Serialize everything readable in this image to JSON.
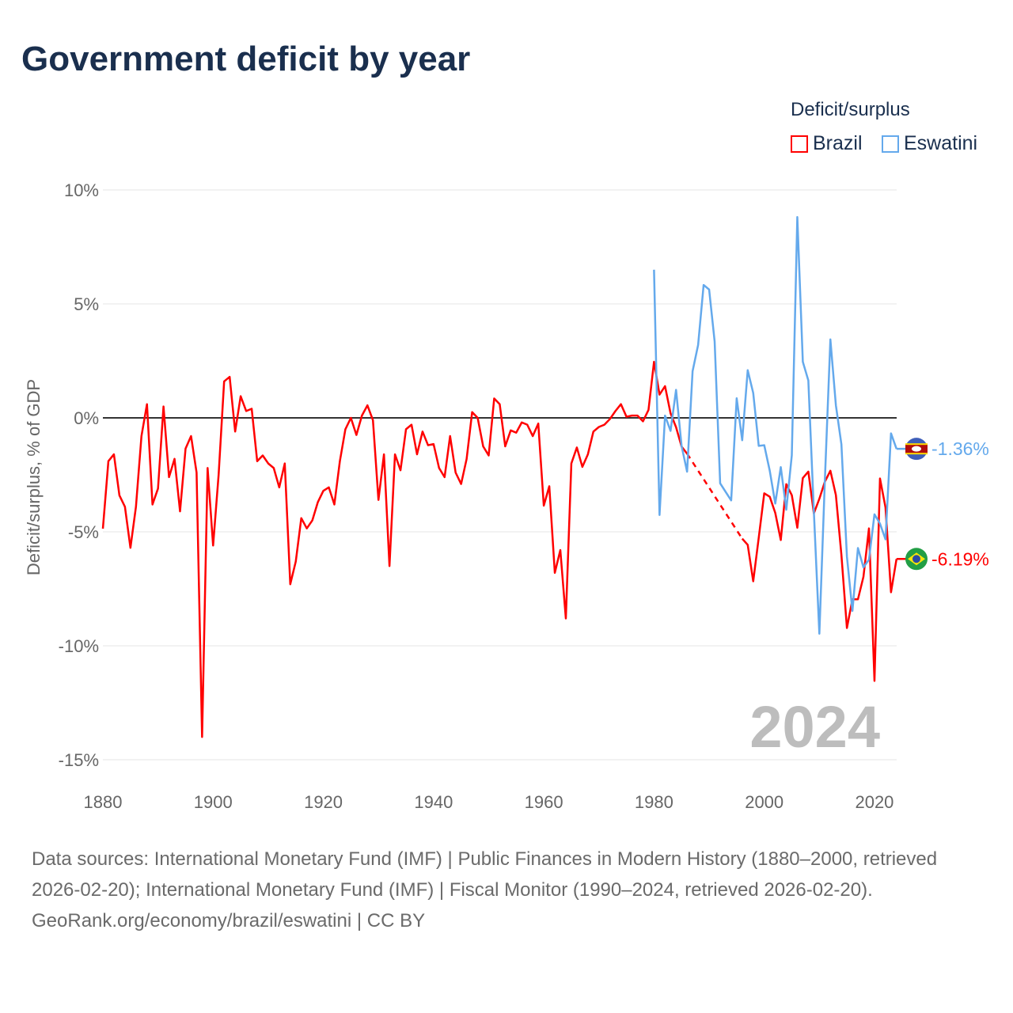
{
  "title": "Government deficit by year",
  "legend": {
    "title": "Deficit/surplus",
    "items": [
      {
        "name": "Brazil",
        "color": "#ff0000"
      },
      {
        "name": "Eswatini",
        "color": "#64a9ec"
      }
    ]
  },
  "footer": {
    "sources": "Data sources: International Monetary Fund (IMF) | Public Finances in Modern History (1880–2000, retrieved 2026-02-20); International Monetary Fund (IMF) | Fiscal Monitor (1990–2024, retrieved 2026-02-20).",
    "credit": "GeoRank.org/economy/brazil/eswatini | CC BY"
  },
  "chart_data": {
    "type": "line",
    "title": "Government deficit by year",
    "ylabel": "Deficit/surplus, % of GDP",
    "xlabel": "",
    "xlim": [
      1880,
      2024
    ],
    "ylim": [
      -15,
      10
    ],
    "yticks": [
      10,
      5,
      0,
      -5,
      -10,
      -15
    ],
    "ytick_labels": [
      "10%",
      "5%",
      "0%",
      "-5%",
      "-10%",
      "-15%"
    ],
    "xticks": [
      1880,
      1900,
      1920,
      1940,
      1960,
      1980,
      2000,
      2020
    ],
    "xtick_labels": [
      "1880",
      "1900",
      "1920",
      "1940",
      "1960",
      "1980",
      "2000",
      "2020"
    ],
    "year_label": "2024",
    "series": [
      {
        "name": "Brazil",
        "color": "#ff0000",
        "start": 1880,
        "end_label": "-6.19%",
        "flag": "brazil-flag",
        "values": [
          -4.86,
          -1.9,
          -1.6,
          -3.4,
          -3.9,
          -5.7,
          -3.9,
          -0.8,
          0.6,
          -3.8,
          -3.1,
          0.5,
          -2.6,
          -1.8,
          -4.1,
          -1.35,
          -0.8,
          -2.4,
          -14.0,
          -2.2,
          -5.6,
          -2.5,
          1.6,
          1.8,
          -0.6,
          0.95,
          0.3,
          0.4,
          -1.9,
          -1.65,
          -2.0,
          -2.2,
          -3.05,
          -2.0,
          -7.3,
          -6.3,
          -4.4,
          -4.85,
          -4.5,
          -3.7,
          -3.2,
          -3.05,
          -3.8,
          -1.9,
          -0.5,
          0,
          -0.75,
          0.1,
          0.55,
          -0.1,
          -3.6,
          -1.6,
          -6.5,
          -1.6,
          -2.3,
          -0.5,
          -0.3,
          -1.6,
          -0.6,
          -1.2,
          -1.15,
          -2.2,
          -2.6,
          -0.8,
          -2.4,
          -2.9,
          -1.8,
          0.25,
          0,
          -1.25,
          -1.65,
          0.85,
          0.6,
          -1.25,
          -0.55,
          -0.65,
          -0.2,
          -0.3,
          -0.8,
          -0.25,
          -3.85,
          -3.0,
          -6.8,
          -5.8,
          -8.8,
          -2.0,
          -1.3,
          -2.15,
          -1.6,
          -0.6,
          -0.4,
          -0.3,
          -0.05,
          0.3,
          0.6,
          0.05,
          0.1,
          0.1,
          -0.15,
          0.35,
          2.46,
          1.02,
          1.39,
          0.2,
          -0.41,
          -1.26,
          -1.57,
          null,
          null,
          null,
          null,
          null,
          null,
          null,
          null,
          null,
          -5.3,
          -5.57,
          -7.17,
          -5.26,
          -3.31,
          -3.46,
          -4.17,
          -5.36,
          -2.91,
          -3.39,
          -4.82,
          -2.64,
          -2.36,
          -4.19,
          -3.55,
          -2.8,
          -2.32,
          -3.39,
          -6.01,
          -9.22,
          -7.96,
          -7.96,
          -6.97,
          -4.85,
          -11.54,
          -2.66,
          -3.93,
          -7.65,
          -6.19
        ]
      },
      {
        "name": "Eswatini",
        "color": "#64a9ec",
        "start": 1980,
        "end_label": "-1.36%",
        "flag": "eswatini-flag",
        "values": [
          6.5,
          -4.26,
          0.1,
          -0.57,
          1.23,
          -1.23,
          -2.36,
          2.05,
          3.2,
          5.83,
          5.63,
          3.35,
          -2.87,
          -3.25,
          -3.62,
          0.86,
          -0.98,
          2.09,
          1.09,
          -1.23,
          -1.2,
          -2.32,
          -3.76,
          -2.16,
          -4.03,
          -1.64,
          8.81,
          2.46,
          1.64,
          -4.1,
          -9.47,
          -2.73,
          3.44,
          0.55,
          -1.16,
          -6.08,
          -8.47,
          -5.71,
          -6.56,
          -6.22,
          -4.23,
          -4.64,
          -5.33,
          -0.68,
          -1.36
        ]
      }
    ]
  }
}
